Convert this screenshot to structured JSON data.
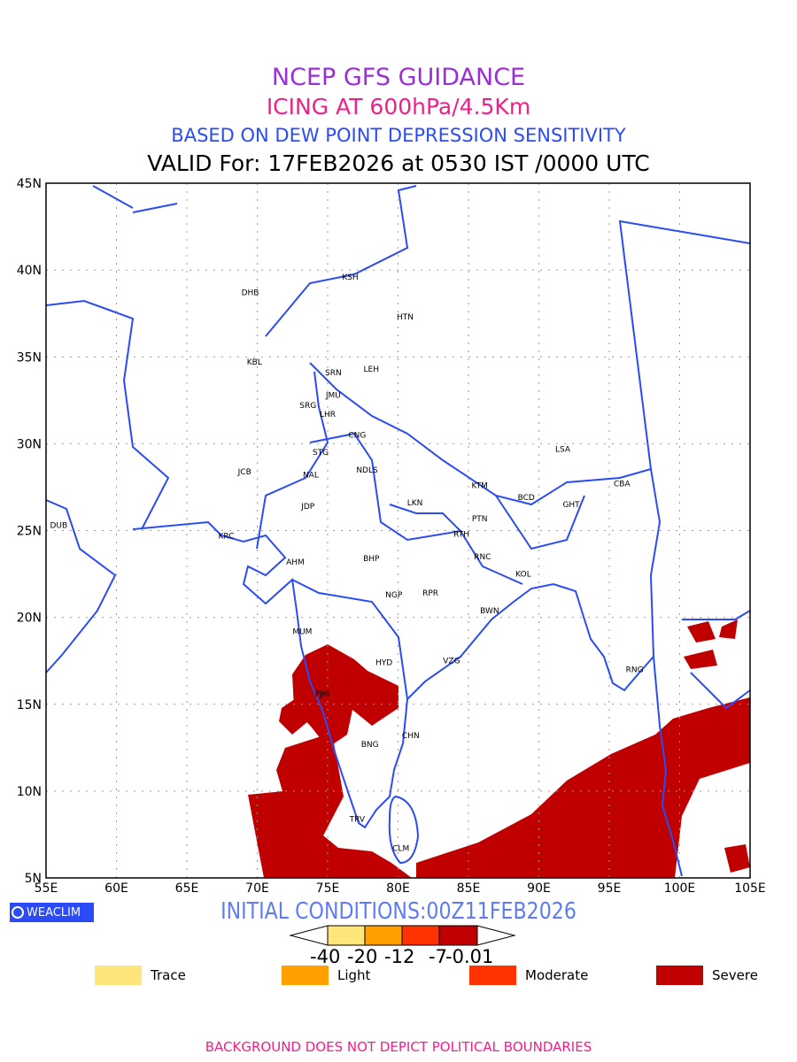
{
  "title": {
    "line1": "NCEP GFS GUIDANCE",
    "line2": "ICING AT 600hPa/4.5Km",
    "line3": "BASED ON DEW POINT DEPRESSION SENSITIVITY",
    "line4": "VALID For: 17FEB2026 at 0530 IST /0000 UTC"
  },
  "axes": {
    "lon_labels": [
      "55E",
      "60E",
      "65E",
      "70E",
      "75E",
      "80E",
      "85E",
      "90E",
      "95E",
      "100E",
      "105E"
    ],
    "lat_labels": [
      "45N",
      "40N",
      "35N",
      "30N",
      "25N",
      "20N",
      "15N",
      "10N",
      "5N"
    ]
  },
  "stations": [
    {
      "code": "KSH",
      "lon": 76.6,
      "lat": 39.6
    },
    {
      "code": "DHB",
      "lon": 69.5,
      "lat": 38.7
    },
    {
      "code": "HTN",
      "lon": 80.5,
      "lat": 37.3
    },
    {
      "code": "KBL",
      "lon": 69.8,
      "lat": 34.7
    },
    {
      "code": "SRN",
      "lon": 75.4,
      "lat": 34.1
    },
    {
      "code": "LEH",
      "lon": 78.1,
      "lat": 34.3
    },
    {
      "code": "JMU",
      "lon": 75.4,
      "lat": 32.8
    },
    {
      "code": "SRG",
      "lon": 73.6,
      "lat": 32.2
    },
    {
      "code": "LHR",
      "lon": 75.0,
      "lat": 31.7
    },
    {
      "code": "CNG",
      "lon": 77.1,
      "lat": 30.5
    },
    {
      "code": "STG",
      "lon": 74.5,
      "lat": 29.5
    },
    {
      "code": "NDLS",
      "lon": 77.8,
      "lat": 28.5
    },
    {
      "code": "JCB",
      "lon": 69.1,
      "lat": 28.4
    },
    {
      "code": "NAL",
      "lon": 73.8,
      "lat": 28.2
    },
    {
      "code": "JDP",
      "lon": 73.6,
      "lat": 26.4
    },
    {
      "code": "LKN",
      "lon": 81.2,
      "lat": 26.6
    },
    {
      "code": "KTM",
      "lon": 85.8,
      "lat": 27.6
    },
    {
      "code": "BCD",
      "lon": 89.1,
      "lat": 26.9
    },
    {
      "code": "LSA",
      "lon": 91.7,
      "lat": 29.7
    },
    {
      "code": "CBA",
      "lon": 95.9,
      "lat": 27.7
    },
    {
      "code": "GHT",
      "lon": 92.3,
      "lat": 26.5
    },
    {
      "code": "PTN",
      "lon": 85.8,
      "lat": 25.7
    },
    {
      "code": "RTH",
      "lon": 84.5,
      "lat": 24.8
    },
    {
      "code": "RNC",
      "lon": 86.0,
      "lat": 23.5
    },
    {
      "code": "KOL",
      "lon": 88.9,
      "lat": 22.5
    },
    {
      "code": "DUB",
      "lon": 55.9,
      "lat": 25.3
    },
    {
      "code": "KRC",
      "lon": 67.8,
      "lat": 24.7
    },
    {
      "code": "AHM",
      "lon": 72.7,
      "lat": 23.2
    },
    {
      "code": "BHP",
      "lon": 78.1,
      "lat": 23.4
    },
    {
      "code": "NGP",
      "lon": 79.7,
      "lat": 21.3
    },
    {
      "code": "RPR",
      "lon": 82.3,
      "lat": 21.4
    },
    {
      "code": "BWN",
      "lon": 86.5,
      "lat": 20.4
    },
    {
      "code": "MUM",
      "lon": 73.2,
      "lat": 19.2
    },
    {
      "code": "HYD",
      "lon": 79.0,
      "lat": 17.4
    },
    {
      "code": "VZG",
      "lon": 83.8,
      "lat": 17.5
    },
    {
      "code": "RNG",
      "lon": 96.8,
      "lat": 17.0
    },
    {
      "code": "PJM",
      "lon": 74.6,
      "lat": 15.6
    },
    {
      "code": "CHN",
      "lon": 80.9,
      "lat": 13.2
    },
    {
      "code": "BNG",
      "lon": 78.0,
      "lat": 12.7
    },
    {
      "code": "TRV",
      "lon": 77.1,
      "lat": 8.4
    },
    {
      "code": "CLM",
      "lon": 80.2,
      "lat": 6.7
    }
  ],
  "initial_conditions": "INITIAL CONDITIONS:00Z11FEB2026",
  "logo": "WEACLIM",
  "colorbar": {
    "labels": [
      "-40",
      "-20",
      "-12",
      "-7",
      "-0.01"
    ],
    "colors": [
      "#ffe57a",
      "#ffa000",
      "#ff3300",
      "#c00000"
    ]
  },
  "legend": [
    {
      "label": "Trace",
      "color": "#ffe57a"
    },
    {
      "label": "Light",
      "color": "#ffa000"
    },
    {
      "label": "Moderate",
      "color": "#ff3300"
    },
    {
      "label": "Severe",
      "color": "#c00000"
    }
  ],
  "footer": "BACKGROUND DOES NOT DEPICT POLITICAL BOUNDARIES"
}
